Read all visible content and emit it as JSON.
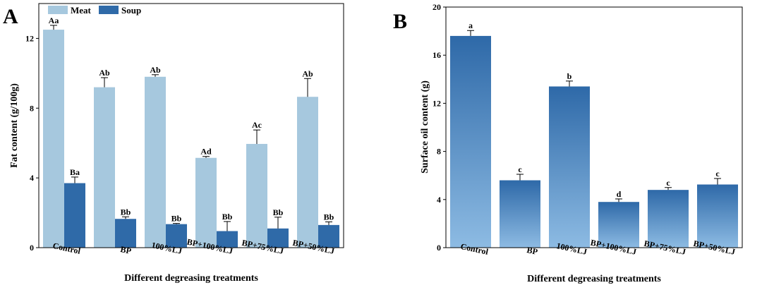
{
  "chart_data": [
    {
      "panel_label": "A",
      "type": "bar",
      "xlabel": "Different degreasing treatments",
      "ylabel": "Fat content (g/100g)",
      "ylim": [
        0,
        14
      ],
      "yticks": [
        0,
        4,
        8,
        12
      ],
      "categories": [
        "Control",
        "BP",
        "100%LJ",
        "BP+100%LJ",
        "BP+75%LJ",
        "BP+50%LJ"
      ],
      "legend_position": "top-left",
      "series": [
        {
          "name": "Meat",
          "color": "#a6c8de",
          "values": [
            12.5,
            9.2,
            9.8,
            5.15,
            5.95,
            8.65
          ],
          "errors": [
            0.25,
            0.55,
            0.12,
            0.08,
            0.8,
            1.05
          ],
          "labels": [
            "Aa",
            "Ab",
            "Ab",
            "Ad",
            "Ac",
            "Ab"
          ]
        },
        {
          "name": "Soup",
          "color": "#2f6aa8",
          "values": [
            3.7,
            1.65,
            1.35,
            0.95,
            1.1,
            1.3
          ],
          "errors": [
            0.35,
            0.12,
            0.04,
            0.55,
            0.65,
            0.18
          ],
          "labels": [
            "Ba",
            "Bb",
            "Bb",
            "Bb",
            "Bb",
            "Bb"
          ]
        }
      ]
    },
    {
      "panel_label": "B",
      "type": "bar",
      "xlabel": "Different degreasing treatments",
      "ylabel": "Surface oil content (g)",
      "ylim": [
        0,
        20
      ],
      "yticks": [
        0,
        4,
        8,
        12,
        16,
        20
      ],
      "categories": [
        "Control",
        "BP",
        "100%LJ",
        "BP+100%LJ",
        "BP+75%LJ",
        "BP+50%LJ"
      ],
      "series": [
        {
          "values": [
            17.6,
            5.6,
            13.4,
            3.8,
            4.8,
            5.25
          ],
          "errors": [
            0.45,
            0.5,
            0.45,
            0.25,
            0.2,
            0.5
          ],
          "labels": [
            "a",
            "c",
            "b",
            "d",
            "c",
            "c"
          ],
          "color_top": "#2e69a8",
          "color_bottom": "#8dbbe3"
        }
      ]
    }
  ]
}
